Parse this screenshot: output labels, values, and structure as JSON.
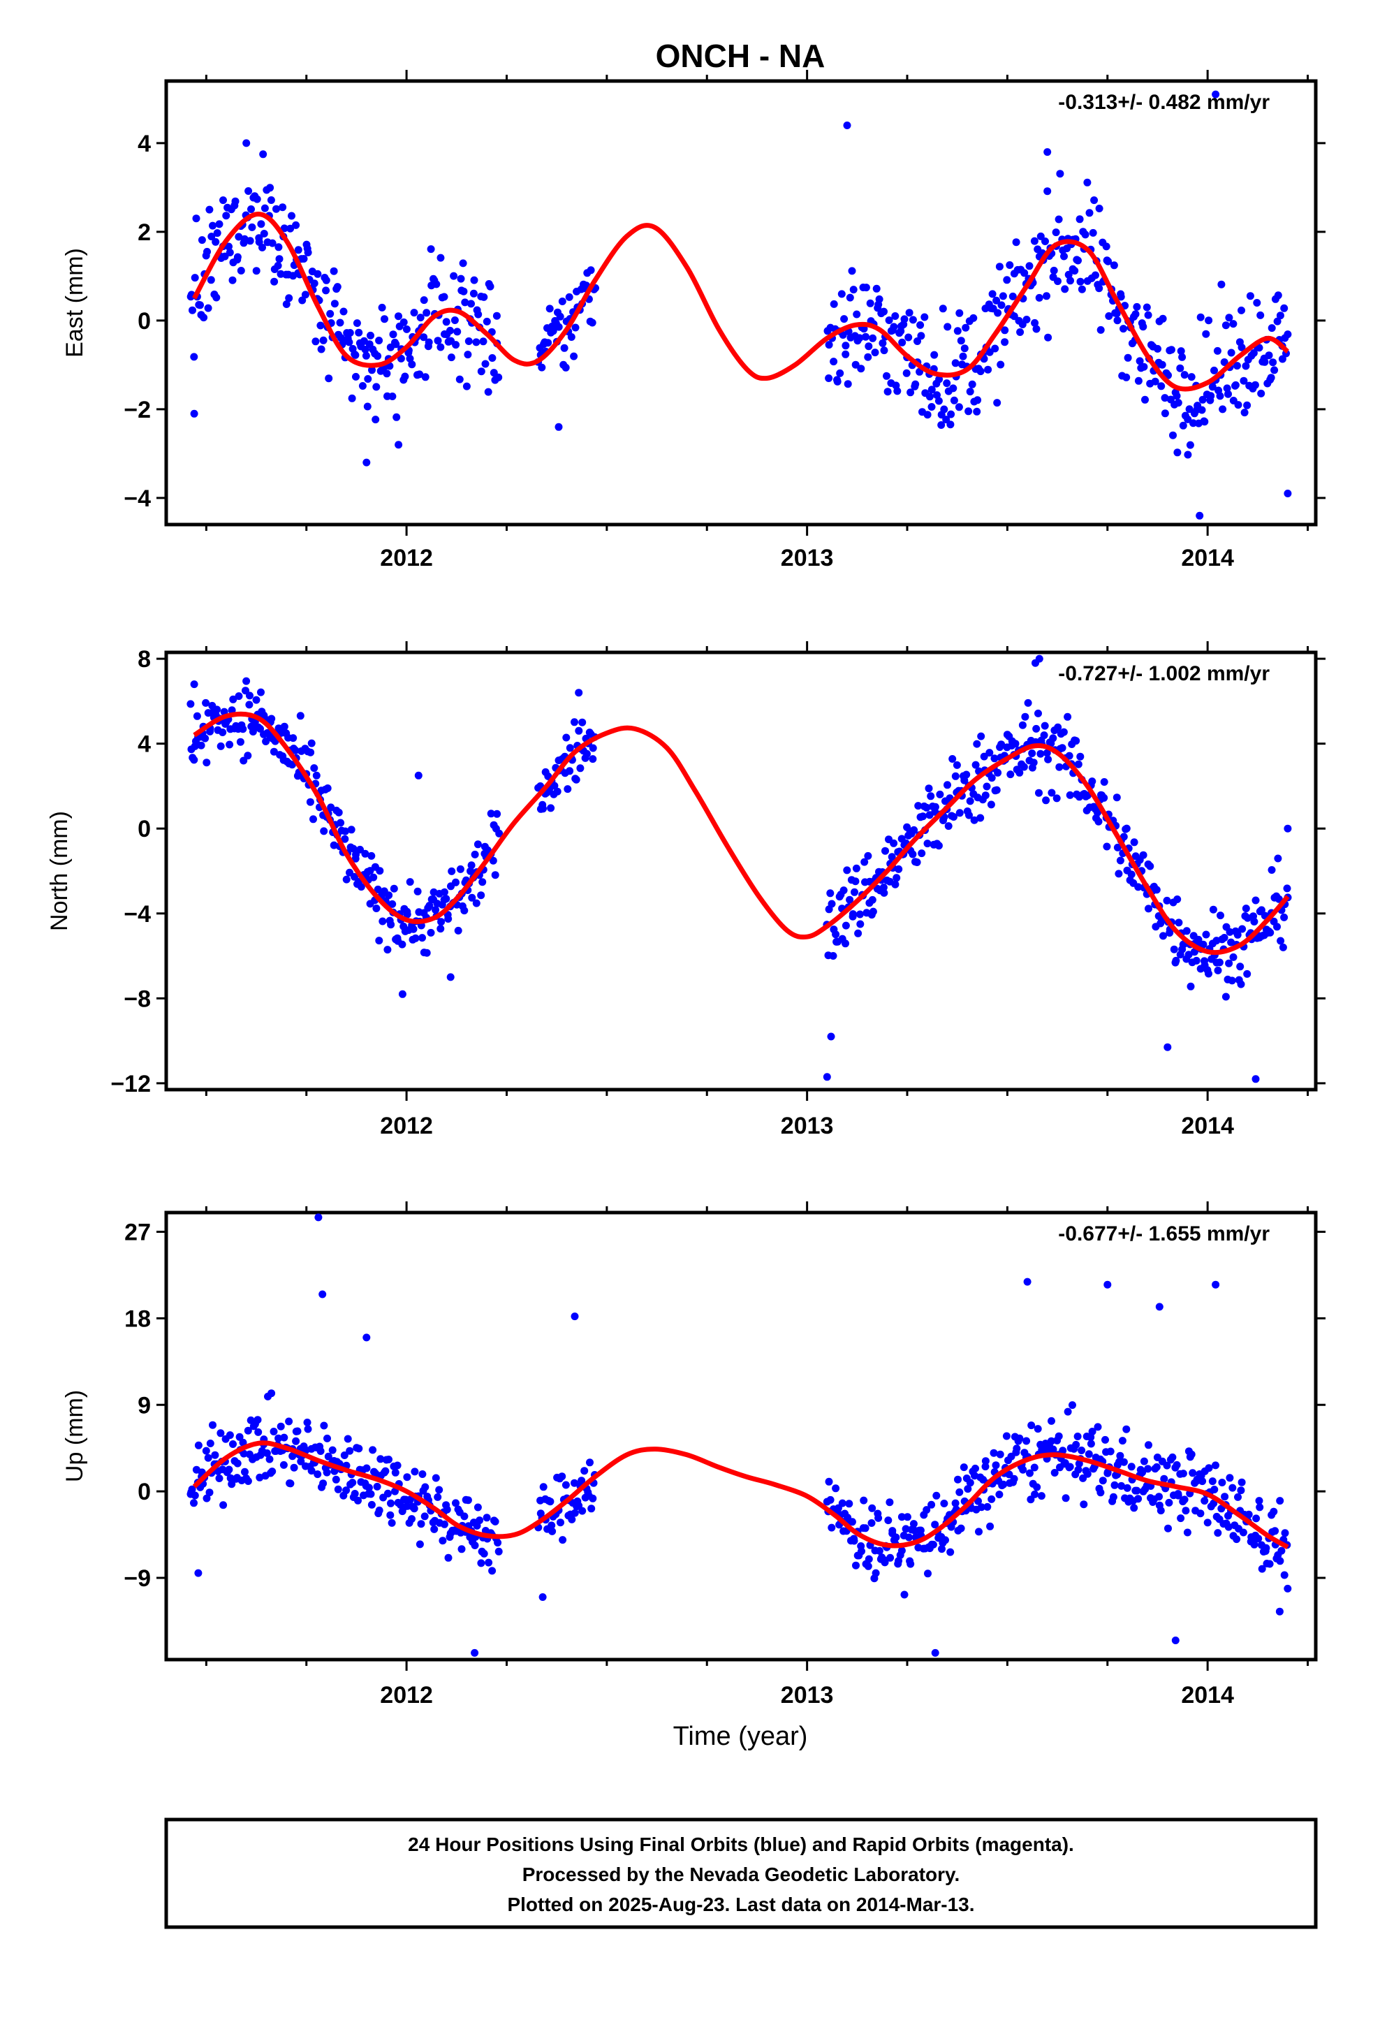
{
  "title": "ONCH - NA",
  "xlabel": "Time (year)",
  "footer": {
    "line1": "24 Hour Positions Using Final Orbits (blue) and Rapid Orbits (magenta).",
    "line2": "Processed by the Nevada Geodetic Laboratory.",
    "line3": "Plotted on 2025-Aug-23. Last data on 2014-Mar-13."
  },
  "colors": {
    "points": "#0000ff",
    "fit": "#ff0000",
    "axis": "#000000"
  },
  "chart_data": [
    {
      "type": "scatter",
      "ylabel": "East (mm)",
      "rate": "-0.313+/- 0.482 mm/yr",
      "xlim": [
        2011.4,
        2014.27
      ],
      "ylim": [
        -4.6,
        5.4
      ],
      "x_ticks": [
        2012,
        2013,
        2014
      ],
      "y_ticks": [
        4,
        2,
        0,
        -2,
        -4
      ],
      "fit_x": [
        2011.47,
        2011.55,
        2011.63,
        2011.7,
        2011.78,
        2011.85,
        2011.93,
        2012.0,
        2012.07,
        2012.13,
        2012.2,
        2012.27,
        2012.33,
        2012.4,
        2012.47,
        2012.55,
        2012.62,
        2012.7,
        2012.78,
        2012.85,
        2012.9,
        2012.97,
        2013.05,
        2013.12,
        2013.18,
        2013.25,
        2013.32,
        2013.4,
        2013.47,
        2013.55,
        2013.62,
        2013.7,
        2013.77,
        2013.85,
        2013.92,
        2014.0,
        2014.08,
        2014.15,
        2014.2
      ],
      "fit_y": [
        0.5,
        1.8,
        2.4,
        1.8,
        0.3,
        -0.8,
        -1.0,
        -0.6,
        0.1,
        0.2,
        -0.3,
        -0.9,
        -0.9,
        -0.2,
        0.9,
        1.9,
        2.1,
        1.2,
        -0.2,
        -1.1,
        -1.3,
        -1.0,
        -0.4,
        -0.1,
        -0.2,
        -0.8,
        -1.2,
        -1.1,
        -0.3,
        0.8,
        1.7,
        1.6,
        0.5,
        -0.8,
        -1.5,
        -1.4,
        -0.8,
        -0.4,
        -0.7
      ],
      "segments": [
        {
          "x0": 2011.46,
          "x1": 2012.23,
          "scatter": 1.0,
          "extra": [
            [
              2011.6,
              4.0
            ],
            [
              2011.9,
              -3.2
            ],
            [
              2011.98,
              -2.8
            ],
            [
              2011.47,
              -2.1
            ]
          ]
        },
        {
          "x0": 2012.33,
          "x1": 2012.47,
          "scatter": 0.8,
          "extra": [
            [
              2012.38,
              -2.4
            ]
          ]
        },
        {
          "x0": 2013.05,
          "x1": 2014.2,
          "scatter": 1.05,
          "extra": [
            [
              2013.1,
              4.4
            ],
            [
              2013.6,
              3.8
            ],
            [
              2013.98,
              -4.4
            ],
            [
              2014.02,
              5.1
            ],
            [
              2014.2,
              -3.9
            ]
          ]
        }
      ]
    },
    {
      "type": "scatter",
      "ylabel": "North (mm)",
      "rate": "-0.727+/- 1.002 mm/yr",
      "xlim": [
        2011.4,
        2014.27
      ],
      "ylim": [
        -12.3,
        8.3
      ],
      "x_ticks": [
        2012,
        2013,
        2014
      ],
      "y_ticks": [
        8,
        4,
        0,
        -4,
        -8,
        -12
      ],
      "fit_x": [
        2011.47,
        2011.55,
        2011.63,
        2011.7,
        2011.78,
        2011.85,
        2011.93,
        2012.0,
        2012.07,
        2012.13,
        2012.2,
        2012.27,
        2012.35,
        2012.42,
        2012.5,
        2012.57,
        2012.65,
        2012.72,
        2012.8,
        2012.88,
        2012.95,
        2013.0,
        2013.05,
        2013.12,
        2013.2,
        2013.27,
        2013.35,
        2013.42,
        2013.5,
        2013.57,
        2013.63,
        2013.7,
        2013.77,
        2013.85,
        2013.92,
        2014.0,
        2014.08,
        2014.15,
        2014.2
      ],
      "fit_y": [
        4.4,
        5.3,
        5.2,
        3.8,
        1.5,
        -1.2,
        -3.3,
        -4.3,
        -4.2,
        -3.2,
        -1.5,
        0.3,
        2.0,
        3.6,
        4.5,
        4.7,
        3.8,
        1.8,
        -0.8,
        -3.2,
        -4.8,
        -5.1,
        -4.6,
        -3.5,
        -2.0,
        -0.5,
        1.0,
        2.3,
        3.3,
        3.9,
        3.5,
        2.0,
        -0.2,
        -2.8,
        -4.8,
        -5.8,
        -5.5,
        -4.3,
        -3.2
      ],
      "segments": [
        {
          "x0": 2011.46,
          "x1": 2012.23,
          "scatter": 1.3,
          "extra": [
            [
              2011.47,
              6.8
            ],
            [
              2011.99,
              -7.8
            ],
            [
              2012.03,
              2.5
            ],
            [
              2012.11,
              -7.0
            ]
          ]
        },
        {
          "x0": 2012.33,
          "x1": 2012.47,
          "scatter": 1.1,
          "extra": [
            [
              2012.43,
              6.4
            ]
          ]
        },
        {
          "x0": 2013.05,
          "x1": 2014.2,
          "scatter": 1.5,
          "extra": [
            [
              2013.05,
              -11.7
            ],
            [
              2013.06,
              -9.8
            ],
            [
              2013.57,
              7.8
            ],
            [
              2013.58,
              8.0
            ],
            [
              2013.9,
              -10.3
            ],
            [
              2014.12,
              -11.8
            ],
            [
              2014.2,
              0.0
            ]
          ]
        }
      ]
    },
    {
      "type": "scatter",
      "ylabel": "Up (mm)",
      "rate": "-0.677+/- 1.655 mm/yr",
      "xlim": [
        2011.4,
        2014.27
      ],
      "ylim": [
        -17.5,
        29.0
      ],
      "x_ticks": [
        2012,
        2013,
        2014
      ],
      "y_ticks": [
        27,
        18,
        9,
        0,
        -9
      ],
      "fit_x": [
        2011.47,
        2011.55,
        2011.63,
        2011.7,
        2011.78,
        2011.85,
        2011.93,
        2012.0,
        2012.07,
        2012.13,
        2012.2,
        2012.27,
        2012.33,
        2012.4,
        2012.47,
        2012.55,
        2012.62,
        2012.7,
        2012.78,
        2012.85,
        2012.92,
        2013.0,
        2013.07,
        2013.13,
        2013.2,
        2013.27,
        2013.33,
        2013.4,
        2013.47,
        2013.55,
        2013.62,
        2013.7,
        2013.78,
        2013.85,
        2013.92,
        2014.0,
        2014.08,
        2014.15,
        2014.2
      ],
      "fit_y": [
        0.5,
        3.5,
        5.0,
        4.5,
        3.2,
        2.2,
        1.2,
        0.0,
        -1.8,
        -3.6,
        -4.6,
        -4.5,
        -3.2,
        -1.0,
        1.5,
        3.8,
        4.4,
        3.8,
        2.5,
        1.5,
        0.7,
        -0.5,
        -2.5,
        -4.5,
        -5.6,
        -5.3,
        -3.9,
        -1.4,
        1.5,
        3.3,
        3.8,
        3.2,
        2.1,
        1.1,
        0.5,
        -0.3,
        -2.5,
        -4.6,
        -5.8
      ],
      "segments": [
        {
          "x0": 2011.46,
          "x1": 2012.23,
          "scatter": 3.0,
          "extra": [
            [
              2011.78,
              28.5
            ],
            [
              2011.79,
              20.5
            ],
            [
              2012.17,
              -16.8
            ],
            [
              2011.9,
              16.0
            ],
            [
              2011.48,
              -8.5
            ]
          ]
        },
        {
          "x0": 2012.33,
          "x1": 2012.47,
          "scatter": 2.5,
          "extra": [
            [
              2012.42,
              18.2
            ],
            [
              2012.34,
              -11.0
            ]
          ]
        },
        {
          "x0": 2013.05,
          "x1": 2014.2,
          "scatter": 3.2,
          "extra": [
            [
              2013.32,
              -16.8
            ],
            [
              2013.55,
              21.8
            ],
            [
              2013.75,
              21.5
            ],
            [
              2013.88,
              19.2
            ],
            [
              2014.02,
              21.5
            ],
            [
              2013.92,
              -15.5
            ],
            [
              2014.18,
              -12.5
            ]
          ]
        }
      ]
    }
  ]
}
